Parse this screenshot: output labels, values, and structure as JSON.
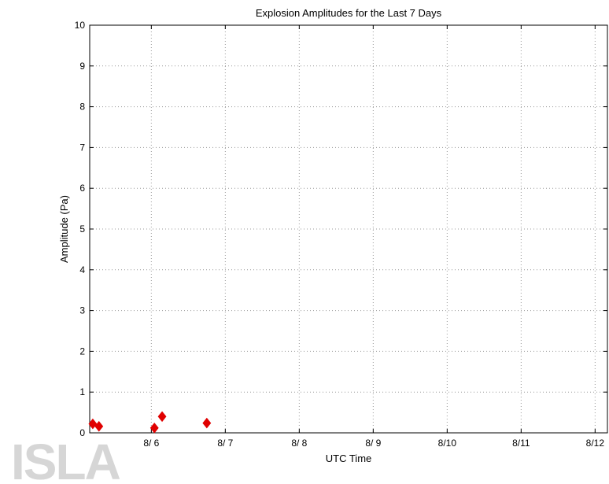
{
  "watermark": {
    "text": "ISLA"
  },
  "chart_data": {
    "type": "scatter",
    "title": "Explosion Amplitudes for the Last 7 Days",
    "xlabel": "UTC Time",
    "ylabel": "Amplitude (Pa)",
    "xlim": [
      "2014-08-05 04:00",
      "2014-08-12 04:00"
    ],
    "ylim": [
      0,
      10
    ],
    "grid": true,
    "x_ticks": [
      {
        "label": "8/ 6",
        "value": "2014-08-06 00:00"
      },
      {
        "label": "8/ 7",
        "value": "2014-08-07 00:00"
      },
      {
        "label": "8/ 8",
        "value": "2014-08-08 00:00"
      },
      {
        "label": "8/ 9",
        "value": "2014-08-09 00:00"
      },
      {
        "label": "8/10",
        "value": "2014-08-10 00:00"
      },
      {
        "label": "8/11",
        "value": "2014-08-11 00:00"
      },
      {
        "label": "8/12",
        "value": "2014-08-12 00:00"
      }
    ],
    "y_ticks": [
      0,
      1,
      2,
      3,
      4,
      5,
      6,
      7,
      8,
      9,
      10
    ],
    "series": [
      {
        "marker": "diamond",
        "color": "#e00000",
        "points": [
          {
            "x": "2014-08-05 05:00",
            "y": 0.22
          },
          {
            "x": "2014-08-05 07:00",
            "y": 0.16
          },
          {
            "x": "2014-08-06 01:00",
            "y": 0.12
          },
          {
            "x": "2014-08-06 03:30",
            "y": 0.4
          },
          {
            "x": "2014-08-06 18:00",
            "y": 0.24
          }
        ]
      }
    ]
  }
}
